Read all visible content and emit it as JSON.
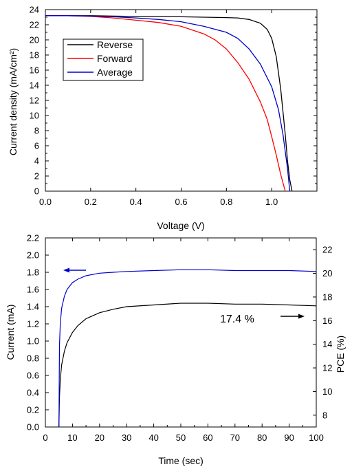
{
  "chart_data": [
    {
      "type": "line",
      "xlabel": "Voltage (V)",
      "ylabel": "Current density (mA/cm²)",
      "xlim": [
        0.0,
        1.2
      ],
      "ylim": [
        0,
        24
      ],
      "xticks": [
        "0.0",
        "0.2",
        "0.4",
        "0.6",
        "0.8",
        "1.0"
      ],
      "yticks": [
        "0",
        "2",
        "4",
        "6",
        "8",
        "10",
        "12",
        "14",
        "16",
        "18",
        "20",
        "22",
        "24"
      ],
      "grid": false,
      "legend_position": "top-left",
      "series": [
        {
          "name": "Reverse",
          "color": "#000000",
          "x": [
            0.0,
            0.1,
            0.2,
            0.3,
            0.4,
            0.5,
            0.6,
            0.7,
            0.8,
            0.85,
            0.9,
            0.95,
            0.98,
            1.0,
            1.02,
            1.04,
            1.06,
            1.07,
            1.08,
            1.09
          ],
          "y": [
            23.2,
            23.2,
            23.2,
            23.15,
            23.1,
            23.1,
            23.05,
            23.0,
            22.95,
            22.9,
            22.7,
            22.2,
            21.4,
            20.2,
            17.8,
            13.5,
            7.5,
            4.0,
            1.5,
            0.0
          ]
        },
        {
          "name": "Forward",
          "color": "#ff0000",
          "x": [
            0.0,
            0.1,
            0.2,
            0.3,
            0.4,
            0.5,
            0.6,
            0.7,
            0.75,
            0.8,
            0.85,
            0.9,
            0.95,
            0.98,
            1.0,
            1.02,
            1.04,
            1.06
          ],
          "y": [
            23.2,
            23.2,
            23.1,
            22.9,
            22.6,
            22.3,
            21.8,
            20.8,
            20.0,
            18.8,
            17.0,
            14.8,
            11.8,
            9.5,
            7.2,
            4.8,
            2.2,
            0.0
          ]
        },
        {
          "name": "Average",
          "color": "#0000cc",
          "x": [
            0.0,
            0.1,
            0.2,
            0.3,
            0.4,
            0.5,
            0.6,
            0.7,
            0.8,
            0.85,
            0.9,
            0.95,
            1.0,
            1.03,
            1.05,
            1.07,
            1.08
          ],
          "y": [
            23.2,
            23.2,
            23.15,
            23.05,
            22.9,
            22.7,
            22.4,
            21.8,
            21.0,
            20.2,
            18.8,
            16.8,
            13.8,
            10.8,
            7.5,
            3.0,
            0.0
          ]
        }
      ]
    },
    {
      "type": "line",
      "xlabel": "Time (sec)",
      "ylabel": "Current (mA)",
      "y2label": "PCE (%)",
      "xlim": [
        0,
        100
      ],
      "ylim": [
        0.0,
        2.2
      ],
      "y2lim": [
        7,
        23
      ],
      "xticks": [
        "0",
        "10",
        "20",
        "30",
        "40",
        "50",
        "60",
        "70",
        "80",
        "90",
        "100"
      ],
      "yticks": [
        "0.0",
        "0.2",
        "0.4",
        "0.6",
        "0.8",
        "1.0",
        "1.2",
        "1.4",
        "1.6",
        "1.8",
        "2.0",
        "2.2"
      ],
      "y2ticks": [
        "8",
        "10",
        "12",
        "14",
        "16",
        "18",
        "20",
        "22"
      ],
      "grid": false,
      "annotation": "17.4 %",
      "series": [
        {
          "axis": "left",
          "color": "#000000",
          "x": [
            5,
            5.2,
            5.5,
            6,
            7,
            8,
            10,
            12,
            15,
            20,
            25,
            30,
            40,
            50,
            60,
            70,
            80,
            90,
            100
          ],
          "y": [
            0.0,
            0.35,
            0.55,
            0.72,
            0.88,
            0.98,
            1.1,
            1.18,
            1.26,
            1.33,
            1.37,
            1.4,
            1.42,
            1.44,
            1.44,
            1.43,
            1.43,
            1.42,
            1.41
          ]
        },
        {
          "axis": "left",
          "color": "#0000cc",
          "x": [
            5,
            5.2,
            5.5,
            6,
            7,
            8,
            10,
            12,
            15,
            20,
            25,
            30,
            40,
            50,
            60,
            70,
            80,
            90,
            100
          ],
          "y": [
            0.0,
            0.95,
            1.2,
            1.38,
            1.52,
            1.6,
            1.68,
            1.72,
            1.76,
            1.79,
            1.8,
            1.81,
            1.82,
            1.83,
            1.83,
            1.82,
            1.82,
            1.82,
            1.81
          ]
        }
      ]
    }
  ]
}
